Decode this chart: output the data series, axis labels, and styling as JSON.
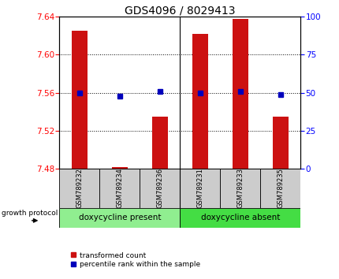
{
  "title": "GDS4096 / 8029413",
  "samples": [
    "GSM789232",
    "GSM789234",
    "GSM789236",
    "GSM789231",
    "GSM789233",
    "GSM789235"
  ],
  "red_values": [
    7.625,
    7.482,
    7.535,
    7.622,
    7.638,
    7.535
  ],
  "blue_values": [
    50.0,
    48.0,
    51.0,
    50.0,
    51.0,
    49.0
  ],
  "ylim_left": [
    7.48,
    7.64
  ],
  "ylim_right": [
    0,
    100
  ],
  "left_ticks": [
    7.48,
    7.52,
    7.56,
    7.6,
    7.64
  ],
  "right_ticks": [
    0,
    25,
    50,
    75,
    100
  ],
  "bar_bottom": 7.48,
  "group_colors": [
    "#90EE90",
    "#44DD44"
  ],
  "group_labels": [
    "doxycycline present",
    "doxycycline absent"
  ],
  "group_label": "growth protocol",
  "bar_color": "#CC1111",
  "dot_color": "#0000BB",
  "title_fontsize": 10,
  "tick_fontsize": 7.5,
  "sample_fontsize": 6,
  "legend_fontsize": 6.5,
  "group_fontsize": 7.5
}
